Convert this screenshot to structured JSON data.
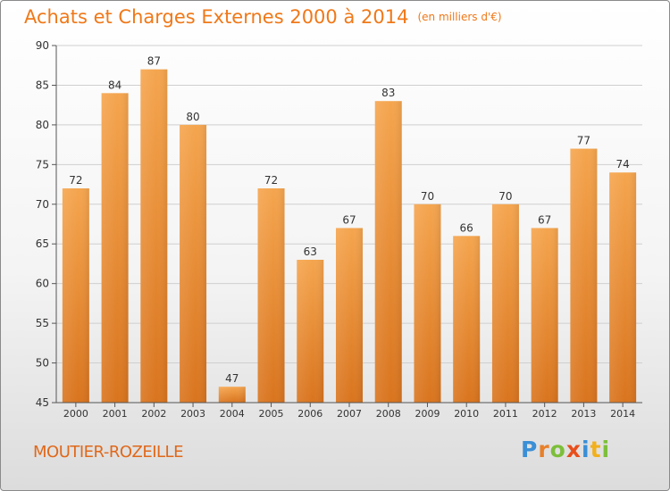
{
  "header": {
    "title": "Achats et Charges Externes 2000 à 2014",
    "unit": "(en milliers d'€)"
  },
  "footer": {
    "place": "MOUTIER-ROZEILLE",
    "logo_letters": [
      "P",
      "r",
      "o",
      "x",
      "i",
      "t",
      "i"
    ],
    "logo_colors": [
      "#3a8fd6",
      "#e8802a",
      "#7cbf3a",
      "#e84e1b",
      "#3a8fd6",
      "#f2b01c",
      "#7cbf3a"
    ]
  },
  "chart_data": {
    "type": "bar",
    "title": "Achats et Charges Externes 2000 à 2014",
    "subtitle": "(en milliers d'€)",
    "categories": [
      "2000",
      "2001",
      "2002",
      "2003",
      "2004",
      "2005",
      "2006",
      "2007",
      "2008",
      "2009",
      "2010",
      "2011",
      "2012",
      "2013",
      "2014"
    ],
    "values": [
      72,
      84,
      87,
      80,
      47,
      72,
      63,
      67,
      83,
      70,
      66,
      70,
      67,
      77,
      74
    ],
    "ylim": [
      45,
      90
    ],
    "yticks": [
      45,
      50,
      55,
      60,
      65,
      70,
      75,
      80,
      85,
      90
    ],
    "grid": true,
    "bar_color_top": "#f5a54e",
    "bar_color_bottom": "#d9741e",
    "axis_color": "#555555"
  }
}
